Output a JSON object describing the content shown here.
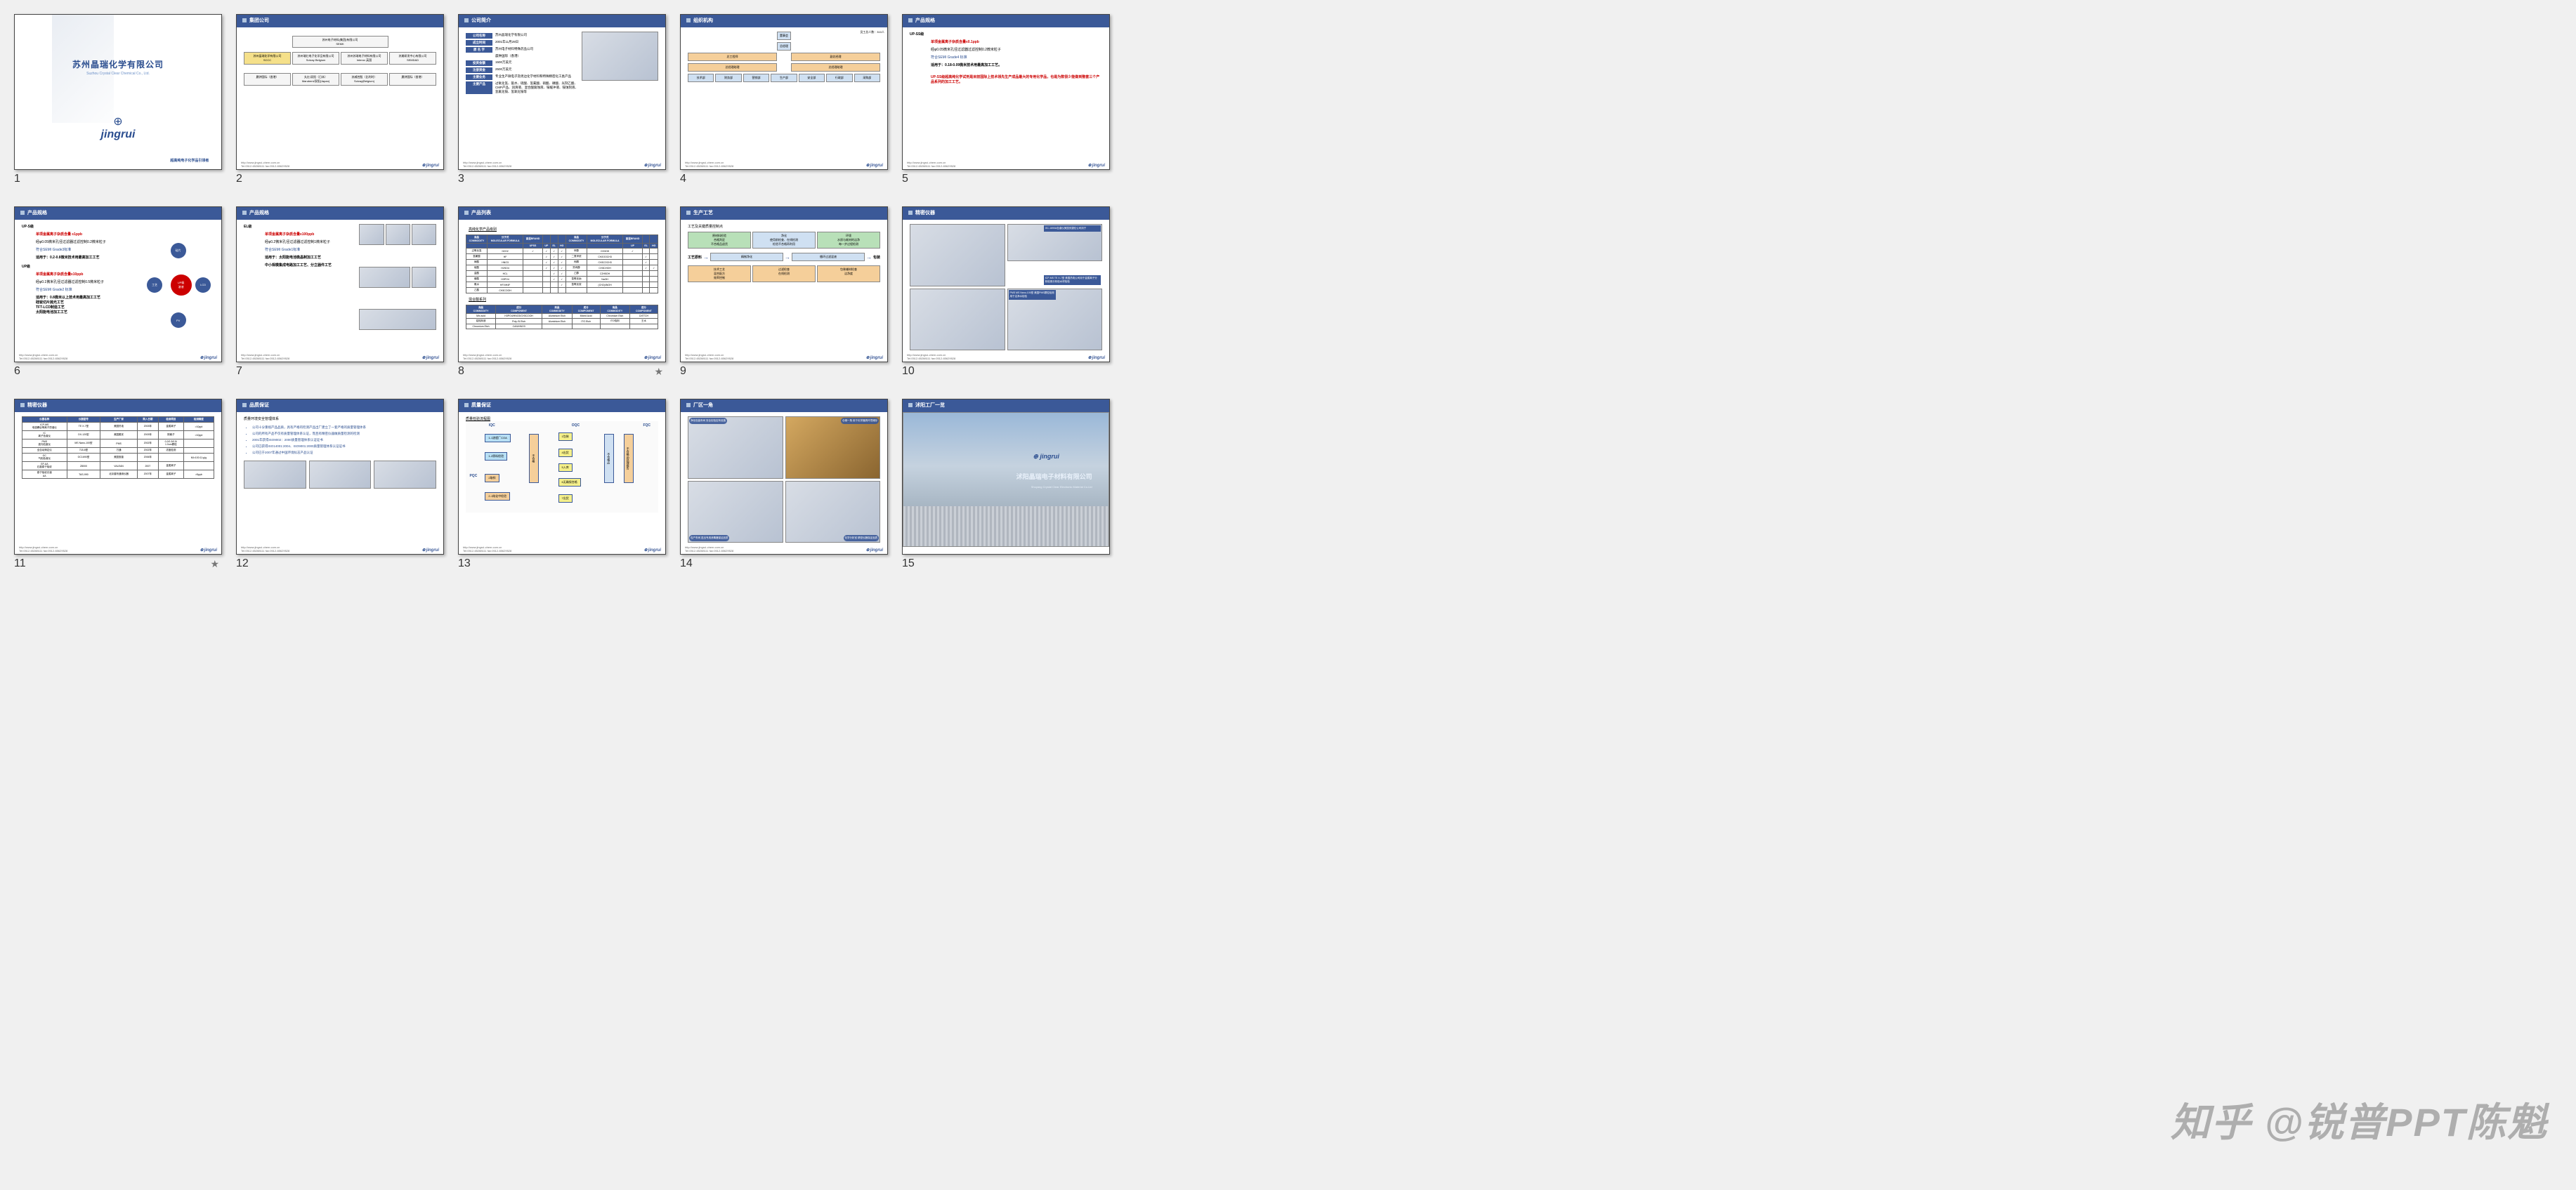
{
  "watermark": "知乎 @锐普PPT陈魁",
  "footer": {
    "url": "http://www.jingrui-chem.com.cn",
    "tel": "Tel:0512-65288111   fax:0512-65629528",
    "logo": "jingrui"
  },
  "slides": [
    {
      "n": 1,
      "title_cn": "苏州晶瑞化学有限公司",
      "title_en": "Suzhou Crystal Clear Chemical Co., Ltd.",
      "logo": "jingrui",
      "sub": "超高纯电子化学品引领者"
    },
    {
      "n": 2,
      "title": "集团公司",
      "top": "苏州电子材料(集团)有限公司\\nSEMK",
      "row1": [
        "苏州晶瑞化学有限公司\\nSCCC",
        "苏州瑞红电子化学品有限公司\\nSolvay Belgium",
        "苏州苏瑞电子材料有限公司\\nInterox 英国",
        "苏美研发中心有限公司\\nSEMD&D"
      ],
      "row2": [
        "晨钟国际（香港）",
        "丸红/双阳（日本）\\nMarubeni/双阳(Japan)",
        "苏威控股（比利时）\\nSolvay(Belgium)",
        "晨钟国际（香港）"
      ]
    },
    {
      "n": 3,
      "title": "公司简介",
      "rows": [
        [
          "公司名称",
          "苏州晶瑞化学有限公司"
        ],
        [
          "成立时间",
          "2001年11月29日"
        ],
        [
          "原 名 字",
          "苏州电子材料特殊药品公司"
        ],
        [
          "",
          "晨钟国际（香港）"
        ],
        [
          "投资金额",
          "1500万美元"
        ],
        [
          "注册资金",
          "2500万美元"
        ],
        [
          "主要业务",
          "专业生产微电子及周边化学材料和特殊精密化工类产品"
        ],
        [
          "主要产品",
          "过氧化氢、氨水、硫酸、氢氟酸、硝酸、磷酸、光刻乙酸、CMP产品、润滑液、混合酸腐蚀液、铵缓冲液、铵蚀刻液、氢氟化铵、氢氧化铵等"
        ]
      ]
    },
    {
      "n": 4,
      "title": "组织机构",
      "side": "员工总人数：310人",
      "org": {
        "top": "董事会",
        "l2": "总经理",
        "l3": [
          "总工程师",
          "副总经理"
        ],
        "l4": [
          "总经理助理",
          "总经理助理"
        ],
        "depts": [
          "技术部",
          "财务部",
          "营销部",
          "生产部",
          "安全部",
          "行政部",
          "采购部"
        ],
        "colors": {
          "top": "#cfe0f2",
          "l2": "#cfe0f2",
          "l3": "#f5cf9a",
          "l4": "#f5cf9a",
          "dept": "#cfe0f2"
        }
      }
    },
    {
      "n": 5,
      "title": "产品规格",
      "grade": "UP-SS级",
      "lines": [
        {
          "t": "单项金属离子杂质含量≤0.1ppb",
          "c": "red"
        },
        {
          "t": "经φ0.05微米孔径过滤器过滤控制0.2微米粒子",
          "c": "black"
        },
        {
          "t": "符合SEMI Grade4 标准",
          "c": "blue"
        },
        {
          "t": "适用于：0.18-0.09微米技术用最高加工工艺。",
          "c": "black"
        },
        {
          "t": "UP-SS级超高纯化学试剂是目前国际上技术领先生产成品最大的专用化学品，也是为数很少能做到整套三个产品系列的加工工艺。",
          "c": "red"
        }
      ]
    },
    {
      "n": 6,
      "title": "产品规格",
      "grades": [
        {
          "g": "UP-S级",
          "lines": [
            {
              "t": "单项金属离子杂质含量 ≤1ppb",
              "c": "red"
            },
            {
              "t": "经φ0.05微米孔径过滤器过滤控制0.2微米粒子",
              "c": "black"
            },
            {
              "t": "符合SEMI Grade3标准",
              "c": "blue"
            },
            {
              "t": "适用于：0.2-0.8微米技术用最高加工工艺",
              "c": "black"
            }
          ]
        },
        {
          "g": "UP级",
          "lines": [
            {
              "t": "单项金属离子杂质含量≤10ppb",
              "c": "red"
            },
            {
              "t": "经φ0.1微米孔径过滤器过滤控制0.5微米粒子",
              "c": "black"
            },
            {
              "t": "符合SEMI Grade2 标准",
              "c": "blue"
            },
            {
              "t": "适用于：0.8微米以上技术用最高加工工艺\\n硅锭切片抛光工艺\\nTFT-LCD制造工艺\\n太阳能电池加工工艺",
              "c": "black"
            }
          ]
        }
      ],
      "hub": {
        "center": "UP级\\n溶液",
        "around": [
          "硅片",
          "LCD",
          "PV",
          "工艺"
        ]
      }
    },
    {
      "n": 7,
      "title": "产品规格",
      "grade": "EL级",
      "lines": [
        {
          "t": "单项金属离子杂质含量≤100ppb",
          "c": "red"
        },
        {
          "t": "经φ0.2微米孔径过滤器过滤控制1微米粒子",
          "c": "black"
        },
        {
          "t": "符合SEMI Grade1标准",
          "c": "blue"
        },
        {
          "t": "适用于：太阳能电池微晶制加工工艺",
          "c": "black"
        },
        {
          "t": "中小规模集成电路加工工艺、分立器件工艺",
          "c": "black"
        }
      ]
    },
    {
      "n": 8,
      "title": "产品列表",
      "star": true,
      "sect1": "高纯化学产品级别",
      "cols1": [
        "商品\\nCOMMODITY",
        "分子式\\nMOLECULAR FORMULA",
        "高混BRAND",
        "",
        "",
        "",
        "商品\\nCOMMODITY",
        "分子式\\nMOLECULAR FORMULA",
        "高混BRAND",
        "",
        ""
      ],
      "sub1": [
        "",
        "",
        "UPSS",
        "UP",
        "EL",
        "HG",
        "",
        "",
        "UP",
        "EL",
        "HG"
      ],
      "rows1": [
        [
          "过氧化氢",
          "H2O2",
          "✓",
          "✓",
          "✓",
          "✓",
          "甲醇",
          "CH3OH",
          "✓",
          "",
          ""
        ],
        [
          "氢氟酸",
          "HF",
          "",
          "✓",
          "✓",
          "✓",
          "二氯甲烷",
          "CH2OOCH3",
          "",
          "✓",
          ""
        ],
        [
          "硝酸",
          "HNO3",
          "",
          "✓",
          "✓",
          "✓",
          "丙酮",
          "CH3COCH3",
          "",
          "✓",
          ""
        ],
        [
          "硫酸",
          "H2SO4",
          "",
          "✓",
          "✓",
          "✓",
          "异丙醇",
          "CH3CHOH",
          "",
          "✓",
          "✓"
        ],
        [
          "盐酸",
          "HCL",
          "",
          "",
          "✓",
          "✓",
          "乙醇",
          "C2H5OH",
          "",
          "",
          ""
        ],
        [
          "磷酸",
          "H3PO4",
          "",
          "",
          "✓",
          "✓",
          "氢氧化钠",
          "NaOH",
          "",
          "",
          ""
        ],
        [
          "氨水",
          "HF.NH4F",
          "",
          "",
          "",
          "✓",
          "氢氧化铵",
          "(CH2)4NOH",
          "",
          "",
          ""
        ],
        [
          "乙酸",
          "CH3COOH",
          "",
          "",
          "",
          "",
          "",
          "",
          "",
          "",
          ""
        ]
      ],
      "sect2": "混合酸系列",
      "cols2": [
        "商品\\nCOMMODITY",
        "成分\\nCOMPONENT",
        "商品\\nCOMMODITY",
        "成分\\nCOMPONENT",
        "商品\\nCOMMODITY",
        "成分\\nCOMPONENT"
      ],
      "rows2": [
        [
          "Mix acid",
          "H3PO4/HNO3/CH3COOH",
          "Aluminium Etch",
          "Mixed Acid",
          "Chromium Etch",
          "CrETCH"
        ],
        [
          "铝蚀刻液",
          "Poly-Si Etch",
          "Aluminium Etch",
          "ITO Etch",
          "ITO蚀刻",
          "王水"
        ],
        [
          "Chromium Etch",
          "CAN/HNO3",
          "",
          "",
          "",
          ""
        ]
      ]
    },
    {
      "n": 9,
      "title": "生产工艺",
      "sub": "工艺及关键质量控制点",
      "flow": [
        {
          "t": "工艺原料",
          "c": "g"
        },
        {
          "t": "精制净化",
          "c": "b"
        },
        {
          "t": "循环过滤混液",
          "c": "b"
        },
        {
          "t": "包装",
          "c": "g"
        }
      ],
      "top": [
        {
          "t": "原材料检验\\n合格判定\\n不合格品退货",
          "c": "g"
        },
        {
          "t": "净化\\n使用前检查、在线检测\\n检验不合格再利用",
          "c": "b"
        },
        {
          "t": "环境\\n水质与耗材的洁净\\n每一步过程检测",
          "c": "g"
        }
      ],
      "bottom": [
        {
          "t": "技术工艺\\n混合配方\\n效率控制"
        },
        {
          "t": "过滤检查\\n在线检测"
        },
        {
          "t": "包装辅材检查\\n洁净度"
        }
      ]
    },
    {
      "n": 10,
      "title": "精密仪器",
      "notes": [
        "GC-1690A色谱仪美国安捷伦公司用于",
        "ICP-MS   TE X-7型 美国热电公司用于金属离子分析检测分析检水样检验",
        "PMS   MS Nano-100型 美国PMS颗粒检测用于洁净水检验"
      ]
    },
    {
      "n": 11,
      "title": "精密仪器",
      "star": true,
      "cols": [
        "仪器名称",
        "仪器型号",
        "生产厂家",
        "购入日期",
        "检测项目",
        "检测精度"
      ],
      "rows": [
        [
          "ICP-MS\\n电感耦合等离子质谱仪",
          "TE X-7型",
          "美国热电",
          "2003年",
          "金属离子",
          ">10ppt"
        ],
        [
          "IC\\n离子色谱仪",
          "DX-120型",
          "美国戴安",
          "2003年",
          "阴离子",
          ">10ppt"
        ],
        [
          "PMS\\n激光粒度仪",
          "MS Nano-100型",
          "PMS",
          "2002年",
          "0.2/0.3/0.5/\\n1.0um颗粒",
          ""
        ],
        [
          "全自动滴定仪",
          "718-6型",
          "万通",
          "2002年",
          "浓度检测",
          ""
        ],
        [
          "GC\\n气相色谱仪",
          "GC1690型",
          "美国惠普",
          "2006年",
          "",
          "MI>100:11:g/g"
        ],
        [
          "GF-AA\\n石墨原子吸收",
          "Z8000",
          "VALEAN",
          "2007",
          "金属离子",
          ""
        ],
        [
          "原子吸收光谱\\nAA",
          "TAS-990",
          "北京普析通用仪器",
          "2007年",
          "金属离子",
          ">5ppb"
        ]
      ]
    },
    {
      "n": 12,
      "title": "品质保证",
      "sub": "质量环境安全管理体系",
      "bullets": [
        "公司十分重视产品品质，具有严格的检测产品出厂建立了一套严格的质量管理体系",
        "公司的所有产品不仅有质量管理体系认证，而且有精密仪器做质量检测的检测",
        "2001年获得ISO9002：2000质量管理体系认证证书",
        "公司已获得ISO14001:2004、ISO9001:2000质量管理体系认证证书",
        "公司已于2007年通过中国环境标志产品认证"
      ]
    },
    {
      "n": 13,
      "title": "质量保证",
      "sub": "质量检验流程图",
      "labels": {
        "iqc": "IQC",
        "pqc": "PQC",
        "oqc": "OQC",
        "fqc": "FQC"
      },
      "steps": [
        "1包装",
        "1-1流程厂COA",
        "1-2原料检验",
        "2取样",
        "2-1纯化中检验",
        "3包装",
        "4出货",
        "5入库",
        "6无确保合格",
        "7出货",
        "不合格",
        "不合格品处理报告",
        "不合格品"
      ]
    },
    {
      "n": 14,
      "title": "厂区一角",
      "captions": [
        "净化包装车间 安全实验应有设施",
        "仓储一角 用于化学器具环境储存",
        "包产车间 进出专用消毒器保证品质",
        "化学分析室 精密仪器保证品质"
      ]
    },
    {
      "n": 15,
      "title": "沭阳工厂一览",
      "sign_cn": "沭阳晶瑞电子材料有限公司",
      "sign_en": "Shuyang Crystal Clear Electronic Material Co.Ltd"
    }
  ]
}
